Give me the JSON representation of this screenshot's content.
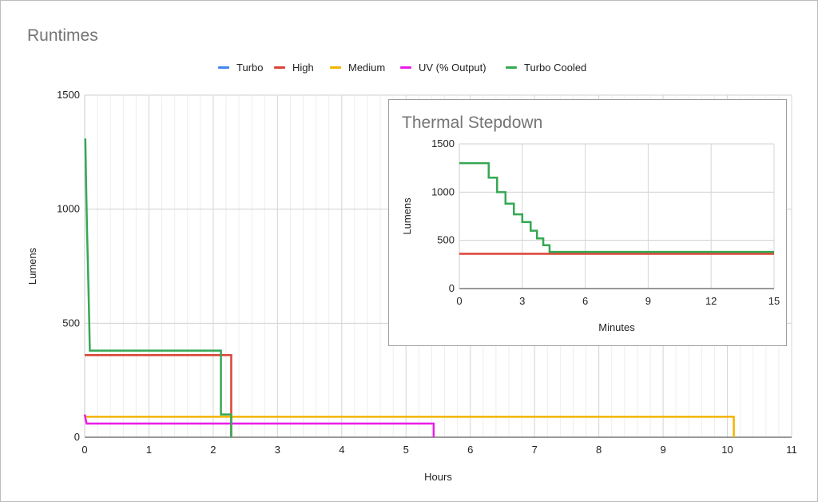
{
  "chart_data": [
    {
      "type": "line",
      "title": "Runtimes",
      "xlabel": "Hours",
      "ylabel": "Lumens",
      "xlim": [
        0,
        11
      ],
      "ylim": [
        0,
        1500
      ],
      "x_ticks": [
        "0",
        "1",
        "2",
        "3",
        "4",
        "5",
        "6",
        "7",
        "8",
        "9",
        "10",
        "11"
      ],
      "y_ticks": [
        "0",
        "500",
        "1000",
        "1500"
      ],
      "grid": true,
      "legend_position": "top",
      "series": [
        {
          "name": "Turbo",
          "color": "#4285f4",
          "points": []
        },
        {
          "name": "High",
          "color": "#db4437",
          "points": [
            [
              0,
              360
            ],
            [
              2.28,
              360
            ],
            [
              2.28,
              0
            ]
          ]
        },
        {
          "name": "Medium",
          "color": "#f4b400",
          "points": [
            [
              0,
              90
            ],
            [
              2.45,
              90
            ],
            [
              10.1,
              90
            ],
            [
              10.1,
              0
            ]
          ]
        },
        {
          "name": "UV (% Output)",
          "color": "#e91ee6",
          "points": [
            [
              0,
              100
            ],
            [
              0.03,
              60
            ],
            [
              5.43,
              60
            ],
            [
              5.43,
              0
            ]
          ]
        },
        {
          "name": "Turbo Cooled",
          "color": "#34a853",
          "points": [
            [
              0.01,
              1310
            ],
            [
              0.02,
              1150
            ],
            [
              0.03,
              1000
            ],
            [
              0.04,
              870
            ],
            [
              0.05,
              760
            ],
            [
              0.06,
              640
            ],
            [
              0.07,
              520
            ],
            [
              0.08,
              380
            ],
            [
              2.12,
              380
            ],
            [
              2.12,
              100
            ],
            [
              2.28,
              100
            ],
            [
              2.28,
              0
            ]
          ]
        }
      ]
    },
    {
      "type": "line",
      "title": "Thermal Stepdown",
      "xlabel": "Minutes",
      "ylabel": "Lumens",
      "xlim": [
        0,
        15
      ],
      "ylim": [
        0,
        1500
      ],
      "x_ticks": [
        "0",
        "3",
        "6",
        "9",
        "12",
        "15"
      ],
      "y_ticks": [
        "0",
        "500",
        "1000",
        "1500"
      ],
      "grid": true,
      "series": [
        {
          "name": "High",
          "color": "#db4437",
          "points": [
            [
              0,
              360
            ],
            [
              15,
              360
            ]
          ]
        },
        {
          "name": "Turbo Cooled",
          "color": "#34a853",
          "points": [
            [
              0,
              1300
            ],
            [
              1.4,
              1300
            ],
            [
              1.4,
              1150
            ],
            [
              1.8,
              1150
            ],
            [
              1.8,
              1000
            ],
            [
              2.2,
              1000
            ],
            [
              2.2,
              880
            ],
            [
              2.6,
              880
            ],
            [
              2.6,
              770
            ],
            [
              3.0,
              770
            ],
            [
              3.0,
              690
            ],
            [
              3.4,
              690
            ],
            [
              3.4,
              600
            ],
            [
              3.7,
              600
            ],
            [
              3.7,
              520
            ],
            [
              4.0,
              520
            ],
            [
              4.0,
              450
            ],
            [
              4.3,
              450
            ],
            [
              4.3,
              380
            ],
            [
              15,
              380
            ]
          ]
        }
      ]
    }
  ]
}
